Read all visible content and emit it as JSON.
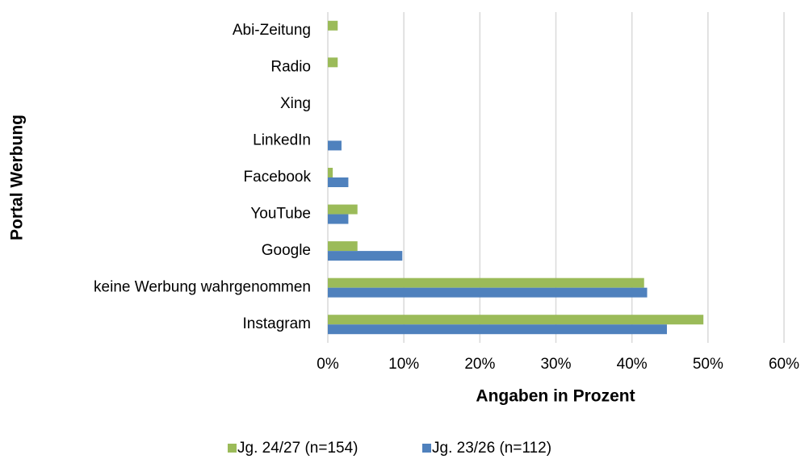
{
  "chart_data": {
    "type": "barh",
    "categories": [
      "Abi-Zeitung",
      "Radio",
      "Xing",
      "LinkedIn",
      "Facebook",
      "YouTube",
      "Google",
      "keine Werbung wahrgenommen",
      "Instagram"
    ],
    "series": [
      {
        "name": "Jg. 24/27 (n=154)",
        "color": "#9bbb59",
        "values": [
          1.3,
          1.3,
          0,
          0,
          0.65,
          3.9,
          3.9,
          41.6,
          49.4
        ]
      },
      {
        "name": "Jg. 23/26 (n=112)",
        "color": "#4f81bd",
        "values": [
          0,
          0,
          0,
          1.8,
          2.7,
          2.7,
          9.8,
          42.0,
          44.6
        ]
      }
    ],
    "xlim": [
      0,
      60
    ],
    "xticks": [
      {
        "value": 0,
        "label": "0%"
      },
      {
        "value": 10,
        "label": "10%"
      },
      {
        "value": 20,
        "label": "20%"
      },
      {
        "value": 30,
        "label": "30%"
      },
      {
        "value": 40,
        "label": "40%"
      },
      {
        "value": 50,
        "label": "50%"
      },
      {
        "value": 60,
        "label": "60%"
      }
    ],
    "x_label": "Angaben in Prozent",
    "y_label": "Portal Werbung",
    "grid": true,
    "legend": "bottom"
  }
}
